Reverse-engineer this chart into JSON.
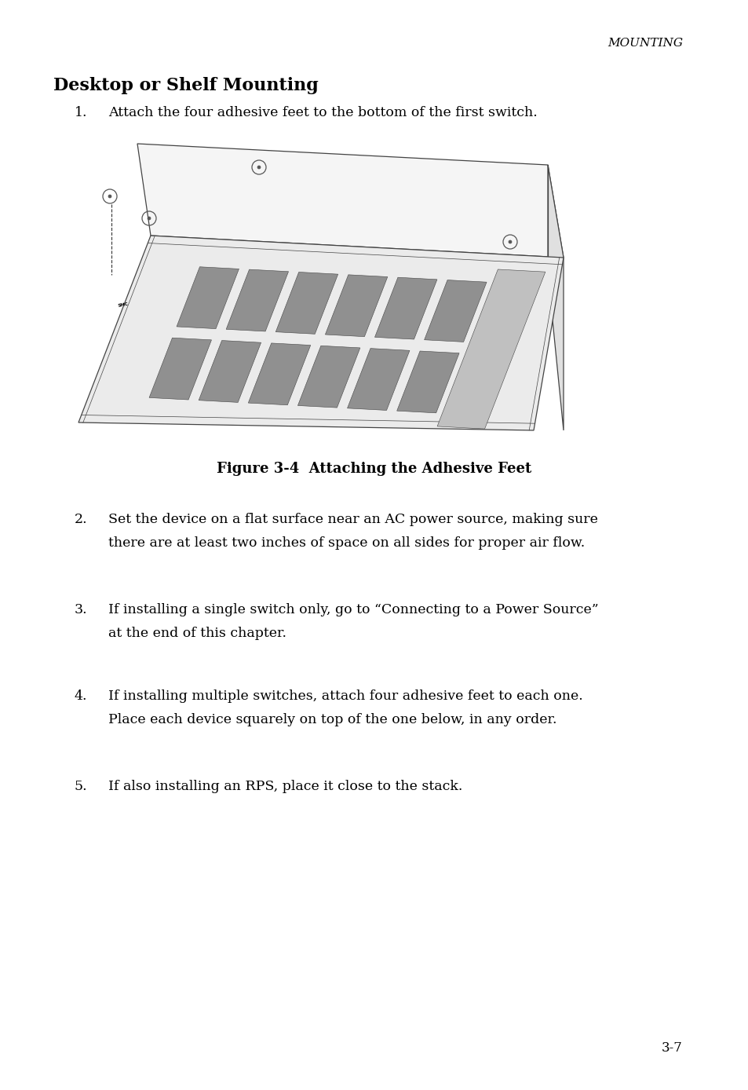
{
  "bg_color": "#ffffff",
  "header_text": "MOUNTING",
  "header_font_size": 11,
  "section_title": "Desktop or Shelf Mounting",
  "section_title_font_size": 16,
  "step1": "Attach the four adhesive feet to the bottom of the first switch.",
  "figure_caption": "Figure 3-4  Attaching the Adhesive Feet",
  "step2_num": "2.",
  "step2": "Set the device on a flat surface near an AC power source, making sure\nthere are at least two inches of space on all sides for proper air flow.",
  "step3_num": "3.",
  "step3": "If installing a single switch only, go to “Connecting to a Power Source”\nat the end of this chapter.",
  "step4_num": "4.",
  "step4": "If installing multiple switches, attach four adhesive feet to each one.\nPlace each device squarely on top of the one below, in any order.",
  "step5_num": "5.",
  "step5": "If also installing an RPS, place it close to the stack.",
  "page_number": "3-7",
  "body_font_size": 12.5,
  "text_color": "#000000",
  "edge_color": "#444444",
  "face_top": "#f5f5f5",
  "face_front": "#ebebeb",
  "face_right": "#e0e0e0",
  "port_color": "#909090"
}
